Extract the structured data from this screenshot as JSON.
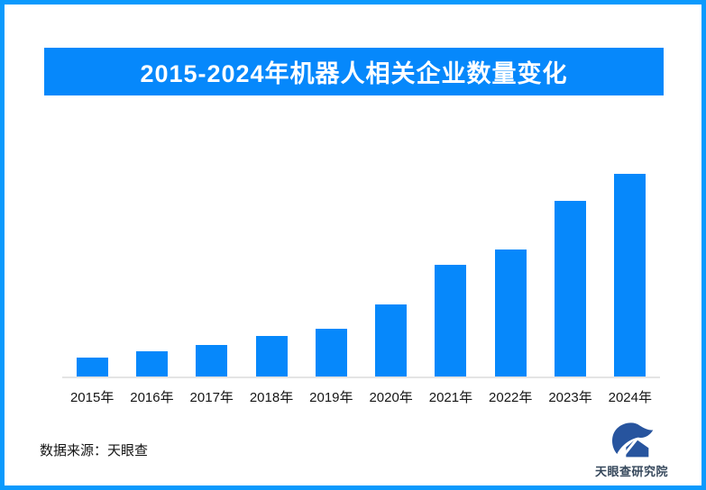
{
  "page": {
    "border_color": "#0b9afd",
    "background_color": "#ffffff"
  },
  "header": {
    "title": "2015-2024年机器人相关企业数量变化",
    "bg_color": "#0688fb",
    "text_color": "#ffffff"
  },
  "chart_data": {
    "type": "bar",
    "title": "2015-2024年机器人相关企业数量变化",
    "categories": [
      "2015年",
      "2016年",
      "2017年",
      "2018年",
      "2019年",
      "2020年",
      "2021年",
      "2022年",
      "2023年",
      "2024年"
    ],
    "values_relative": [
      9.3,
      12.4,
      15.6,
      20.0,
      23.6,
      35.6,
      55.1,
      62.7,
      86.7,
      100.0
    ],
    "note": "图中无y轴与数值标签，values为相对条高(最大值=100)",
    "xlabel": "",
    "ylabel": "",
    "gridlines": false,
    "value_labels_shown": false,
    "bar_color": "#0688fb",
    "axis_line_color": "#e4e4e4",
    "label_color": "#151515"
  },
  "footer": {
    "source_text": "数据来源：天眼查",
    "logo_text": "天眼查研究院",
    "logo_color": "#27549e",
    "logo_text_color": "#36485c"
  }
}
